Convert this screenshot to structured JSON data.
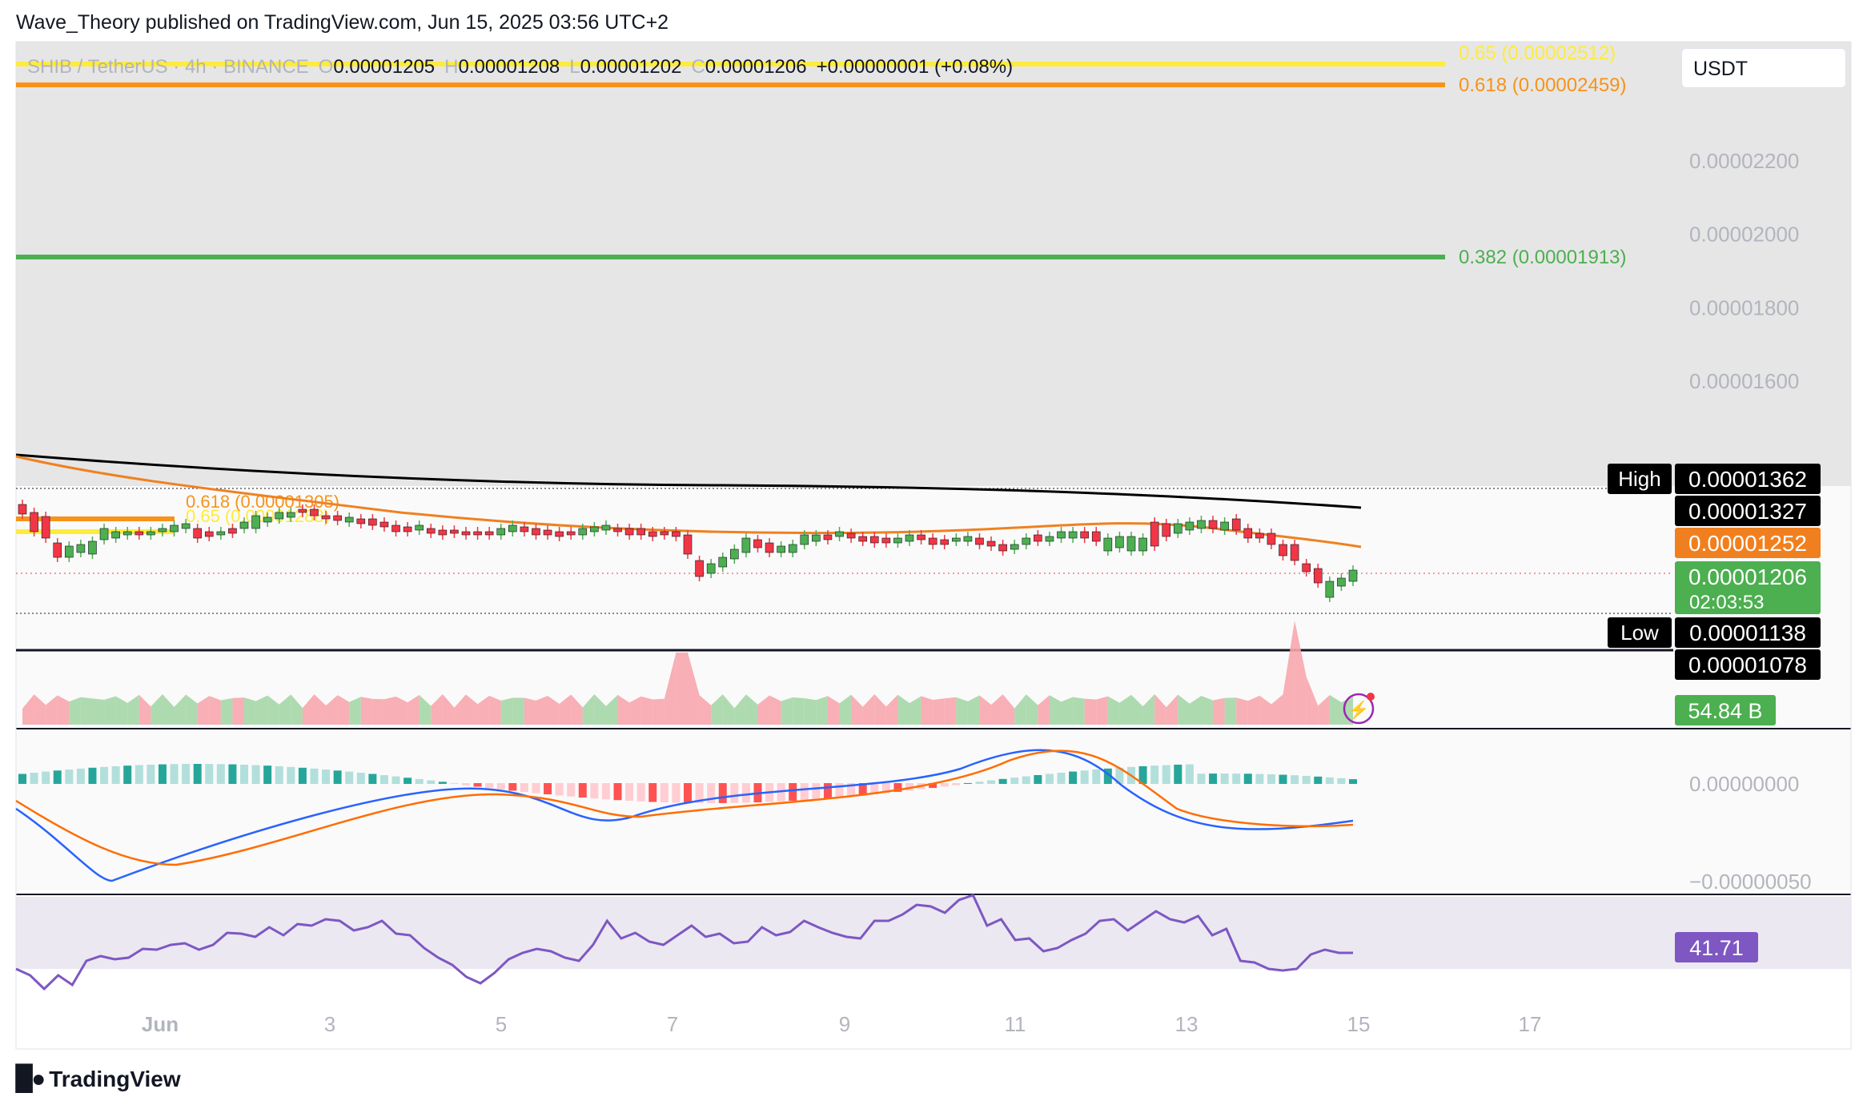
{
  "header": {
    "publish_line": "Wave_Theory published on TradingView.com, Jun 15, 2025 03:56 UTC+2"
  },
  "footer": {
    "brand": "TradingView"
  },
  "toolbar": {
    "currency": "USDT"
  },
  "legend": {
    "symbol": "SHIB / TetherUS · 4h · BINANCE",
    "open_prefix": "O",
    "open": "0.00001205",
    "high_prefix": "H",
    "high": "0.00001208",
    "low_prefix": "L",
    "low": "0.00001202",
    "close_prefix": "C",
    "close": "0.00001206",
    "change": "+0.00000001 (+0.08%)"
  },
  "colors": {
    "up": "#4caf50",
    "down": "#f23645",
    "ema_fast": "#f0801f",
    "ema_slow": "#000000",
    "fib_green": "#4caf50",
    "fib_orange": "#f7931a",
    "fib_yellow": "#ffeb3b",
    "macd_line": "#2962ff",
    "signal_line": "#ff6d00",
    "rsi": "#7e57c2",
    "volume_up": "#a5d6a7",
    "volume_down": "#f7a6ad"
  },
  "chart_data": {
    "type": "candlestick",
    "price_axis": {
      "ticks": [
        2.2e-05,
        2e-05,
        1.8e-05,
        1.6e-05
      ],
      "tick_labels": [
        "0.00002200",
        "0.00002000",
        "0.00001800",
        "0.00001600"
      ]
    },
    "time_axis": {
      "labels": [
        "Jun",
        "3",
        "5",
        "7",
        "9",
        "11",
        "13",
        "15",
        "17"
      ]
    },
    "fib_levels": [
      {
        "label": "0.618 (0.00002459)",
        "value": 2.459e-05,
        "color": "orange"
      },
      {
        "label": "0.65 (0.00002512)",
        "value": 2.512e-05,
        "color": "yellow"
      },
      {
        "label": "0.382 (0.00001913)",
        "value": 1.913e-05,
        "color": "green"
      },
      {
        "label": "0.618 (0.00001305)",
        "value": 1.305e-05,
        "color": "orange"
      },
      {
        "label": "0.65 (0.00001288)",
        "value": 1.288e-05,
        "color": "yellow"
      }
    ],
    "price_tags": [
      {
        "title": "High",
        "value": "0.00001362",
        "style": "black"
      },
      {
        "title": "",
        "value": "0.00001327",
        "style": "black"
      },
      {
        "title": "",
        "value": "0.00001252",
        "style": "orange"
      },
      {
        "title": "",
        "value": "0.00001206",
        "sub": "02:03:53",
        "style": "green"
      },
      {
        "title": "Low",
        "value": "0.00001138",
        "style": "black"
      },
      {
        "title": "",
        "value": "0.00001078",
        "style": "black"
      }
    ],
    "volume_tag": "54.84 B",
    "macd_axis": [
      "0.00000000",
      "−0.00000050"
    ],
    "rsi_value": "41.71"
  }
}
